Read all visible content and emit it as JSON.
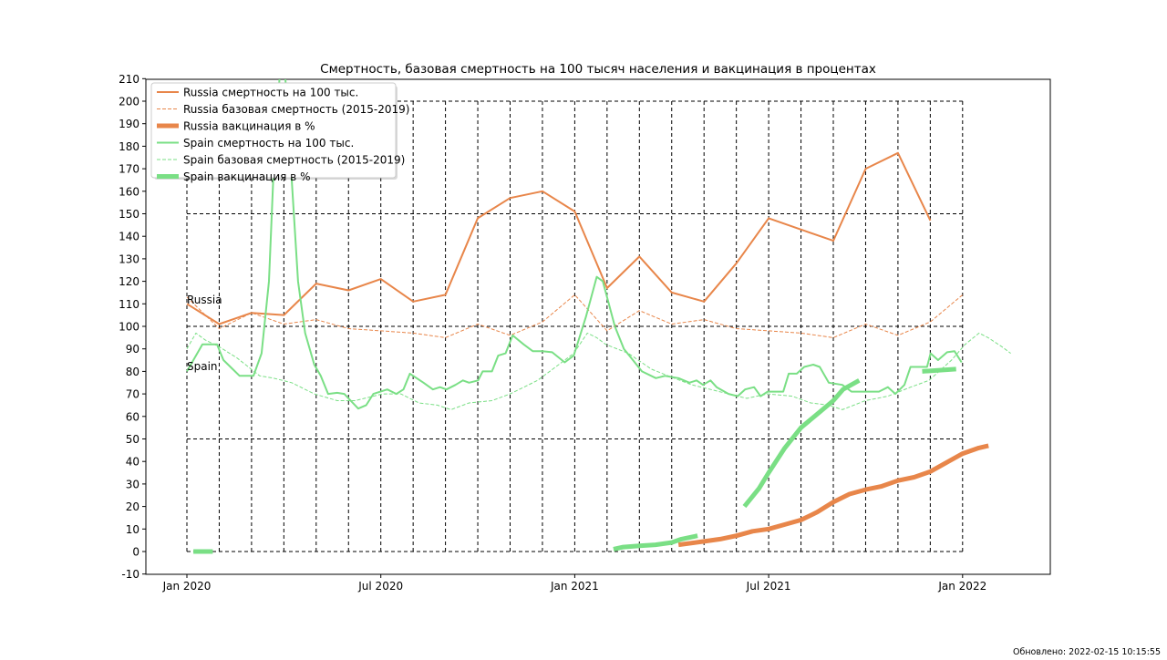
{
  "chart_data": {
    "type": "line",
    "title": "Смертность, базовая смертность на 100 тысяч населения и вакцинация в процентах",
    "xlabel": "",
    "ylabel": "",
    "x_units": "months since Jan 2020",
    "xlim": [
      -1.25,
      26.7
    ],
    "ylim": [
      -10,
      210
    ],
    "yticks": [
      -10,
      0,
      10,
      20,
      30,
      40,
      50,
      60,
      70,
      80,
      90,
      100,
      110,
      120,
      130,
      140,
      150,
      160,
      170,
      180,
      190,
      200,
      210
    ],
    "xticks": [
      {
        "x": 0,
        "label": "Jan 2020"
      },
      {
        "x": 6,
        "label": "Jul 2020"
      },
      {
        "x": 12,
        "label": "Jan 2021"
      },
      {
        "x": 18,
        "label": "Jul 2021"
      },
      {
        "x": 24,
        "label": "Jan 2022"
      }
    ],
    "grid": {
      "months": [
        0,
        24
      ],
      "levels": [
        0,
        50,
        100,
        150,
        200
      ]
    },
    "legend_position": "top-left",
    "annotations": [
      {
        "text": "Russia",
        "x": 0,
        "y": 110
      },
      {
        "text": "Spain",
        "x": 0,
        "y": 80
      }
    ],
    "series": [
      {
        "name": "Russia смертность на 100 тыс.",
        "color": "#e8864a",
        "style": "solid",
        "width": 2,
        "points": [
          [
            0,
            110
          ],
          [
            1,
            101
          ],
          [
            2,
            106
          ],
          [
            3,
            105
          ],
          [
            4,
            119
          ],
          [
            5,
            116
          ],
          [
            6,
            121
          ],
          [
            7,
            111
          ],
          [
            8,
            114
          ],
          [
            9,
            148
          ],
          [
            10,
            157
          ],
          [
            11,
            160
          ],
          [
            12,
            151
          ],
          [
            13,
            117
          ],
          [
            14,
            131
          ],
          [
            15,
            115
          ],
          [
            16,
            111
          ],
          [
            17,
            128
          ],
          [
            18,
            148
          ],
          [
            19,
            143
          ],
          [
            20,
            138
          ],
          [
            21,
            170
          ],
          [
            22,
            177
          ],
          [
            23,
            147
          ]
        ]
      },
      {
        "name": "Russia базовая смертность (2015-2019)",
        "color": "#e8864a",
        "style": "dashed",
        "width": 1,
        "points": [
          [
            0,
            113
          ],
          [
            1,
            99
          ],
          [
            2,
            106
          ],
          [
            3,
            101
          ],
          [
            4,
            103
          ],
          [
            5,
            99
          ],
          [
            6,
            98
          ],
          [
            7,
            97
          ],
          [
            8,
            95
          ],
          [
            9,
            101
          ],
          [
            10,
            96
          ],
          [
            11,
            102
          ],
          [
            12,
            114
          ],
          [
            13,
            98
          ],
          [
            14,
            107
          ],
          [
            15,
            101
          ],
          [
            16,
            103
          ],
          [
            17,
            99
          ],
          [
            18,
            98
          ],
          [
            19,
            97
          ],
          [
            20,
            95
          ],
          [
            21,
            101
          ],
          [
            22,
            96
          ],
          [
            23,
            102
          ],
          [
            24,
            114
          ]
        ]
      },
      {
        "name": "Russia вакцинация в %",
        "color": "#e8864a",
        "style": "solid",
        "width": 5,
        "points": [
          [
            15.21,
            3
          ],
          [
            16,
            4.5
          ],
          [
            16.5,
            5.5
          ],
          [
            17,
            7
          ],
          [
            17.5,
            9
          ],
          [
            18,
            10
          ],
          [
            18.5,
            12
          ],
          [
            19,
            14
          ],
          [
            19.5,
            17.5
          ],
          [
            20,
            22
          ],
          [
            20.5,
            25.5
          ],
          [
            21,
            27.5
          ],
          [
            21.5,
            29
          ],
          [
            22,
            31.5
          ],
          [
            22.5,
            33
          ],
          [
            23,
            35.5
          ],
          [
            23.5,
            39.5
          ],
          [
            24,
            43.5
          ],
          [
            24.5,
            46
          ],
          [
            24.8,
            47
          ]
        ]
      },
      {
        "name": "Spain смертность на 100 тыс.",
        "color": "#7adf85",
        "style": "solid",
        "width": 2,
        "points": [
          [
            0,
            80
          ],
          [
            0.48,
            92
          ],
          [
            0.93,
            92
          ],
          [
            1.13,
            85
          ],
          [
            1.63,
            78
          ],
          [
            2.06,
            78
          ],
          [
            2.31,
            88
          ],
          [
            2.54,
            120
          ],
          [
            2.7,
            175
          ],
          [
            2.96,
            230
          ],
          [
            3.18,
            180
          ],
          [
            3.44,
            120
          ],
          [
            3.66,
            97
          ],
          [
            3.94,
            83
          ],
          [
            4.14,
            78
          ],
          [
            4.37,
            70
          ],
          [
            4.65,
            70.5
          ],
          [
            4.87,
            70
          ],
          [
            5.3,
            63.5
          ],
          [
            5.55,
            65
          ],
          [
            5.77,
            70
          ],
          [
            6.2,
            72
          ],
          [
            6.48,
            70
          ],
          [
            6.7,
            72
          ],
          [
            6.9,
            79
          ],
          [
            7.32,
            75
          ],
          [
            7.61,
            72
          ],
          [
            7.83,
            73
          ],
          [
            8.03,
            72
          ],
          [
            8.31,
            74
          ],
          [
            8.54,
            76
          ],
          [
            8.73,
            75
          ],
          [
            9.01,
            76
          ],
          [
            9.15,
            80
          ],
          [
            9.44,
            80
          ],
          [
            9.63,
            87
          ],
          [
            9.86,
            88
          ],
          [
            10.08,
            96
          ],
          [
            10.42,
            92
          ],
          [
            10.7,
            89
          ],
          [
            10.99,
            89
          ],
          [
            11.3,
            88.5
          ],
          [
            11.69,
            84
          ],
          [
            11.97,
            87
          ],
          [
            12.34,
            104
          ],
          [
            12.68,
            122
          ],
          [
            12.87,
            120
          ],
          [
            13.24,
            100
          ],
          [
            13.52,
            90
          ],
          [
            13.8,
            85
          ],
          [
            14.08,
            80
          ],
          [
            14.51,
            77
          ],
          [
            14.79,
            78
          ],
          [
            15.21,
            77
          ],
          [
            15.55,
            75
          ],
          [
            15.77,
            76
          ],
          [
            15.97,
            74
          ],
          [
            16.2,
            76
          ],
          [
            16.39,
            73
          ],
          [
            16.76,
            70
          ],
          [
            17.04,
            69
          ],
          [
            17.27,
            72
          ],
          [
            17.55,
            73
          ],
          [
            17.75,
            69
          ],
          [
            17.97,
            71
          ],
          [
            18.45,
            71
          ],
          [
            18.62,
            79
          ],
          [
            18.87,
            79
          ],
          [
            19.1,
            82
          ],
          [
            19.38,
            83
          ],
          [
            19.58,
            82
          ],
          [
            19.86,
            75
          ],
          [
            20.28,
            74
          ],
          [
            20.56,
            71
          ],
          [
            21.13,
            71
          ],
          [
            21.41,
            71
          ],
          [
            21.69,
            73
          ],
          [
            21.92,
            70
          ],
          [
            22.2,
            74
          ],
          [
            22.39,
            82
          ],
          [
            22.68,
            82
          ],
          [
            22.9,
            82
          ],
          [
            23.01,
            88
          ],
          [
            23.24,
            85
          ],
          [
            23.52,
            88.5
          ],
          [
            23.75,
            89
          ],
          [
            23.97,
            84
          ]
        ]
      },
      {
        "name": "Spain базовая смертность (2015-2019)",
        "color": "#7adf85",
        "style": "dashed",
        "width": 1,
        "points": [
          [
            0,
            90
          ],
          [
            0.28,
            97
          ],
          [
            0.56,
            94
          ],
          [
            0.99,
            91
          ],
          [
            1.55,
            86
          ],
          [
            2.25,
            78
          ],
          [
            2.68,
            77
          ],
          [
            3.24,
            75
          ],
          [
            3.94,
            70
          ],
          [
            4.65,
            67
          ],
          [
            5.21,
            67
          ],
          [
            5.49,
            68
          ],
          [
            6.06,
            70
          ],
          [
            6.62,
            70
          ],
          [
            7.18,
            66
          ],
          [
            7.75,
            65
          ],
          [
            8.17,
            63
          ],
          [
            8.73,
            66
          ],
          [
            9.44,
            67
          ],
          [
            10,
            70
          ],
          [
            10.85,
            76
          ],
          [
            11.41,
            82
          ],
          [
            11.97,
            88
          ],
          [
            12.39,
            97
          ],
          [
            12.68,
            95
          ],
          [
            12.96,
            92
          ],
          [
            13.66,
            88
          ],
          [
            14.37,
            81
          ],
          [
            15.07,
            77
          ],
          [
            15.63,
            74
          ],
          [
            16.2,
            72
          ],
          [
            16.76,
            70
          ],
          [
            17.32,
            68
          ],
          [
            17.97,
            70
          ],
          [
            18.73,
            69
          ],
          [
            19.3,
            66
          ],
          [
            19.86,
            65
          ],
          [
            20.28,
            63
          ],
          [
            20.99,
            67
          ],
          [
            21.69,
            69
          ],
          [
            22.39,
            73
          ],
          [
            22.96,
            76
          ],
          [
            23.66,
            85
          ],
          [
            24.08,
            92
          ],
          [
            24.51,
            97
          ],
          [
            24.79,
            95
          ],
          [
            25.21,
            91
          ],
          [
            25.49,
            88
          ]
        ]
      },
      {
        "name": "Spain вакцинация в %",
        "color": "#7adf85",
        "style": "solid",
        "width": 5,
        "points": [
          [
            0.2,
            0
          ],
          [
            0.8,
            0
          ],
          null,
          [
            13.2,
            1
          ],
          [
            13.5,
            2
          ],
          [
            14,
            2.5
          ],
          [
            14.5,
            3
          ],
          [
            15,
            4
          ],
          [
            15.3,
            5.5
          ],
          [
            15.8,
            7
          ],
          null,
          [
            17.25,
            20
          ],
          [
            17.7,
            28
          ],
          [
            18,
            35
          ],
          [
            18.5,
            46
          ],
          [
            19,
            55
          ],
          [
            19.5,
            61
          ],
          [
            20,
            67
          ],
          [
            20.3,
            72
          ],
          [
            20.8,
            76
          ],
          null,
          [
            22.75,
            80
          ],
          [
            23.8,
            81
          ]
        ]
      }
    ]
  },
  "footer": {
    "updated": "Обновлено: 2022-02-15  10:15:55"
  }
}
